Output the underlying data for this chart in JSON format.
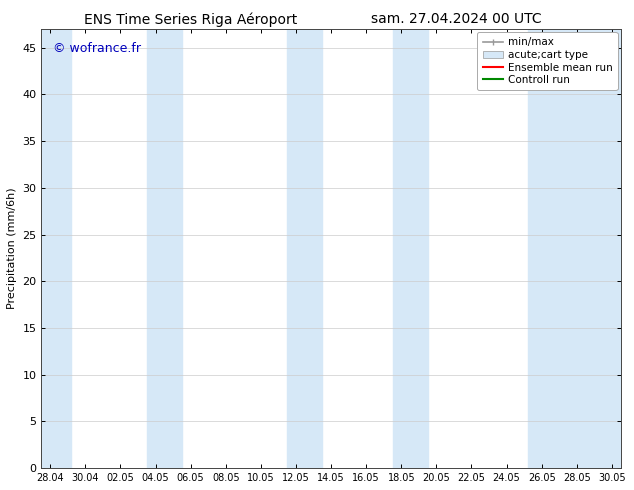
{
  "title_left": "ENS Time Series Riga Aéroport",
  "title_right": "sam. 27.04.2024 00 UTC",
  "ylabel": "Precipitation (mm/6h)",
  "ylim": [
    0,
    47
  ],
  "yticks": [
    0,
    5,
    10,
    15,
    20,
    25,
    30,
    35,
    40,
    45
  ],
  "x_tick_labels": [
    "28.04",
    "30.04",
    "02.05",
    "04.05",
    "06.05",
    "08.05",
    "10.05",
    "12.05",
    "14.05",
    "16.05",
    "18.05",
    "20.05",
    "22.05",
    "24.05",
    "26.05",
    "28.05",
    "30.05"
  ],
  "watermark": "© wofrance.fr",
  "watermark_color": "#0000bb",
  "bg_color": "#ffffff",
  "plot_bg_color": "#ffffff",
  "band_color": "#d6e8f7",
  "legend_labels": [
    "min/max",
    "acute;cart type",
    "Ensemble mean run",
    "Controll run"
  ],
  "font_size": 8,
  "title_font_size": 10
}
